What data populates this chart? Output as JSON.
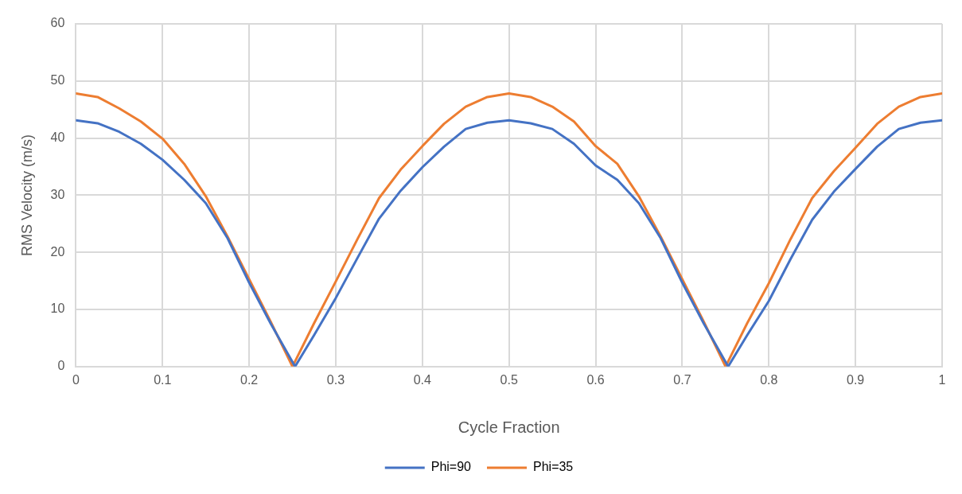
{
  "chart_data": {
    "type": "line",
    "xlabel": "Cycle Fraction",
    "ylabel": "RMS Velocity (m/s)",
    "xlim": [
      0,
      1
    ],
    "xticks": [
      0,
      0.1,
      0.2,
      0.3,
      0.4,
      0.5,
      0.6,
      0.7,
      0.8,
      0.9,
      1
    ],
    "ylim": [
      0,
      60
    ],
    "yticks": [
      0,
      10,
      20,
      30,
      40,
      50,
      60
    ],
    "grid": true,
    "legend": "bottom",
    "marker": "none",
    "line_style": "solid",
    "series": [
      {
        "name": "Phi=90",
        "color": "#4472c4",
        "x": [
          0,
          0.025,
          0.05,
          0.075,
          0.1,
          0.125,
          0.15,
          0.175,
          0.2,
          0.225,
          0.253,
          0.275,
          0.3,
          0.325,
          0.35,
          0.375,
          0.4,
          0.425,
          0.45,
          0.475,
          0.5,
          0.525,
          0.55,
          0.575,
          0.6,
          0.625,
          0.65,
          0.675,
          0.7,
          0.725,
          0.753,
          0.775,
          0.8,
          0.825,
          0.85,
          0.875,
          0.9,
          0.925,
          0.95,
          0.975,
          1
        ],
        "values": [
          43.1,
          42.6,
          41.1,
          39,
          36.2,
          32.7,
          28.6,
          22.5,
          14.7,
          7.5,
          0,
          5.5,
          12,
          19,
          25.9,
          30.8,
          34.9,
          38.5,
          41.6,
          42.7,
          43.1,
          42.6,
          41.6,
          39,
          35.2,
          32.7,
          28.6,
          22.5,
          14.7,
          7.5,
          0,
          5.5,
          11.5,
          18.8,
          25.7,
          30.6,
          34.6,
          38.5,
          41.6,
          42.7,
          43.1
        ]
      },
      {
        "name": "Phi=35",
        "color": "#ed7d31",
        "x": [
          0,
          0.025,
          0.05,
          0.075,
          0.1,
          0.125,
          0.15,
          0.175,
          0.2,
          0.225,
          0.25,
          0.275,
          0.3,
          0.325,
          0.35,
          0.375,
          0.4,
          0.425,
          0.45,
          0.475,
          0.5,
          0.525,
          0.55,
          0.575,
          0.6,
          0.625,
          0.65,
          0.675,
          0.7,
          0.725,
          0.75,
          0.775,
          0.8,
          0.825,
          0.85,
          0.875,
          0.9,
          0.925,
          0.95,
          0.975,
          1
        ],
        "values": [
          47.8,
          47.2,
          45.2,
          42.9,
          39.9,
          35.5,
          29.8,
          22.8,
          15.3,
          7.8,
          0,
          7.6,
          14.9,
          22.3,
          29.5,
          34.5,
          38.6,
          42.5,
          45.5,
          47.2,
          47.8,
          47.2,
          45.5,
          42.9,
          38.6,
          35.5,
          29.8,
          22.8,
          15.3,
          7.8,
          0,
          7.6,
          14.6,
          22.3,
          29.5,
          34.2,
          38.3,
          42.5,
          45.5,
          47.2,
          47.8
        ]
      }
    ]
  }
}
